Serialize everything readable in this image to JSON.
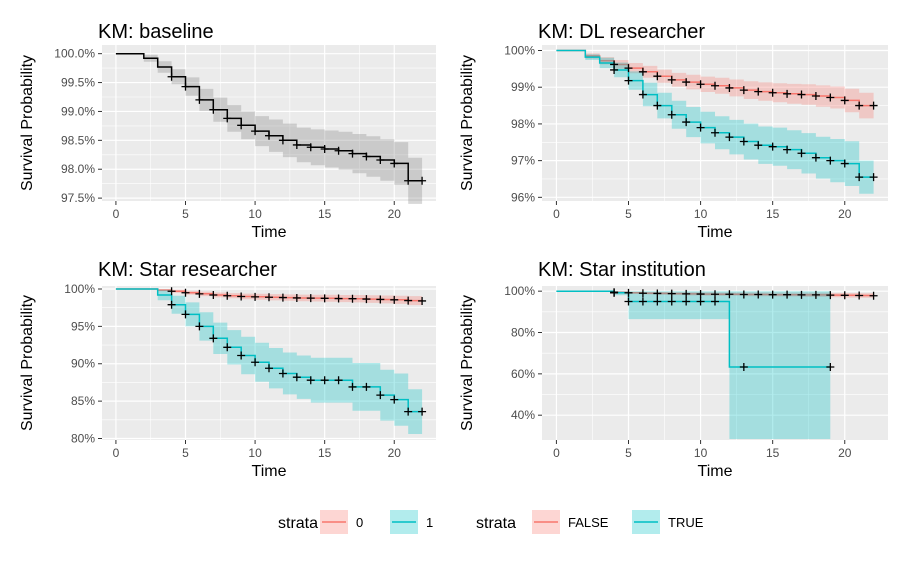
{
  "chart_data": [
    {
      "type": "line",
      "title": "KM: baseline",
      "xlabel": "Time",
      "ylabel": "Survival Probability",
      "xlim": [
        -1,
        23
      ],
      "ylim": [
        97.45,
        100.15
      ],
      "xticks": [
        0,
        5,
        10,
        15,
        20
      ],
      "yticks": [
        97.5,
        98.0,
        98.5,
        99.0,
        99.5,
        100.0
      ],
      "yticklabels": [
        "97.5%",
        "98.0%",
        "98.5%",
        "99.0%",
        "99.5%",
        "100.0%"
      ],
      "series": [
        {
          "name": "",
          "color": "#000000",
          "band_color": "#7f7f7f",
          "x": [
            0,
            2,
            3,
            4,
            5,
            6,
            7,
            8,
            9,
            10,
            11,
            12,
            13,
            14,
            15,
            16,
            17,
            18,
            19,
            20,
            21,
            22
          ],
          "y": [
            100.0,
            99.92,
            99.77,
            99.6,
            99.43,
            99.2,
            99.03,
            98.88,
            98.76,
            98.66,
            98.58,
            98.5,
            98.42,
            98.38,
            98.35,
            98.32,
            98.27,
            98.22,
            98.16,
            98.1,
            97.8,
            97.8
          ],
          "lower": [
            100.0,
            99.86,
            99.67,
            99.47,
            99.27,
            99.01,
            98.82,
            98.65,
            98.52,
            98.4,
            98.3,
            98.21,
            98.12,
            98.07,
            98.03,
            97.99,
            97.93,
            97.87,
            97.8,
            97.73,
            97.4,
            97.4
          ],
          "upper": [
            100.0,
            99.98,
            99.87,
            99.73,
            99.59,
            99.39,
            99.24,
            99.11,
            99.0,
            98.92,
            98.86,
            98.79,
            98.72,
            98.69,
            98.67,
            98.65,
            98.61,
            98.57,
            98.52,
            98.47,
            98.2,
            98.2
          ],
          "censor_x": [
            4,
            5,
            6,
            7,
            8,
            9,
            10,
            11,
            12,
            13,
            14,
            15,
            16,
            17,
            18,
            19,
            20,
            21,
            22
          ],
          "censor_y": [
            99.6,
            99.43,
            99.2,
            99.03,
            98.88,
            98.76,
            98.66,
            98.58,
            98.5,
            98.42,
            98.38,
            98.35,
            98.32,
            98.27,
            98.22,
            98.16,
            98.1,
            97.8,
            97.8
          ]
        }
      ]
    },
    {
      "type": "line",
      "title": "KM: DL researcher",
      "xlabel": "Time",
      "ylabel": "Survival Probability",
      "xlim": [
        -1,
        23
      ],
      "ylim": [
        95.9,
        100.15
      ],
      "xticks": [
        0,
        5,
        10,
        15,
        20
      ],
      "yticks": [
        96,
        97,
        98,
        99,
        100
      ],
      "yticklabels": [
        "96%",
        "97%",
        "98%",
        "99%",
        "100%"
      ],
      "series": [
        {
          "name": "FALSE",
          "color": "#f8766d",
          "band_color": "#f8766d",
          "x": [
            0,
            2,
            3,
            4,
            5,
            6,
            7,
            8,
            9,
            10,
            11,
            12,
            13,
            14,
            15,
            16,
            17,
            18,
            19,
            20,
            21,
            22
          ],
          "y": [
            100.0,
            99.85,
            99.72,
            99.62,
            99.52,
            99.42,
            99.3,
            99.2,
            99.14,
            99.08,
            99.04,
            98.98,
            98.92,
            98.88,
            98.85,
            98.82,
            98.8,
            98.76,
            98.72,
            98.64,
            98.5,
            98.5
          ],
          "lower": [
            100.0,
            99.78,
            99.62,
            99.5,
            99.38,
            99.26,
            99.12,
            99.01,
            98.94,
            98.87,
            98.82,
            98.75,
            98.68,
            98.63,
            98.59,
            98.55,
            98.52,
            98.47,
            98.42,
            98.32,
            98.15,
            98.15
          ],
          "upper": [
            100.0,
            99.92,
            99.82,
            99.74,
            99.66,
            99.58,
            99.48,
            99.39,
            99.34,
            99.29,
            99.26,
            99.21,
            99.16,
            99.13,
            99.11,
            99.09,
            99.08,
            99.05,
            99.02,
            98.96,
            98.85,
            98.85
          ],
          "censor_x": [
            4,
            5,
            6,
            7,
            8,
            9,
            10,
            11,
            12,
            13,
            14,
            15,
            16,
            17,
            18,
            19,
            20,
            21,
            22
          ],
          "censor_y": [
            99.62,
            99.52,
            99.42,
            99.3,
            99.2,
            99.14,
            99.08,
            99.04,
            98.98,
            98.92,
            98.88,
            98.85,
            98.82,
            98.8,
            98.76,
            98.72,
            98.64,
            98.5,
            98.5
          ]
        },
        {
          "name": "TRUE",
          "color": "#00bfc4",
          "band_color": "#00bfc4",
          "x": [
            0,
            2,
            3,
            4,
            5,
            6,
            7,
            8,
            9,
            10,
            11,
            12,
            13,
            14,
            15,
            16,
            17,
            18,
            19,
            20,
            21,
            22
          ],
          "y": [
            100.0,
            99.82,
            99.66,
            99.47,
            99.18,
            98.8,
            98.5,
            98.25,
            98.05,
            97.9,
            97.76,
            97.64,
            97.52,
            97.42,
            97.38,
            97.3,
            97.2,
            97.08,
            97.0,
            96.92,
            96.55,
            96.55
          ],
          "lower": [
            100.0,
            99.74,
            99.52,
            99.27,
            98.93,
            98.48,
            98.15,
            97.87,
            97.64,
            97.47,
            97.31,
            97.17,
            97.03,
            96.91,
            96.86,
            96.77,
            96.65,
            96.51,
            96.41,
            96.31,
            96.1,
            96.1
          ],
          "upper": [
            100.0,
            99.9,
            99.8,
            99.67,
            99.43,
            99.12,
            98.85,
            98.63,
            98.46,
            98.33,
            98.21,
            98.11,
            98.01,
            97.93,
            97.9,
            97.83,
            97.75,
            97.65,
            97.59,
            97.53,
            97.0,
            97.0
          ],
          "censor_x": [
            4,
            5,
            6,
            7,
            8,
            9,
            10,
            11,
            12,
            13,
            14,
            15,
            16,
            17,
            18,
            19,
            20,
            21,
            22
          ],
          "censor_y": [
            99.47,
            99.18,
            98.8,
            98.5,
            98.25,
            98.05,
            97.9,
            97.76,
            97.64,
            97.52,
            97.42,
            97.38,
            97.3,
            97.2,
            97.08,
            97.0,
            96.92,
            96.55,
            96.55
          ]
        }
      ]
    },
    {
      "type": "line",
      "title": "KM: Star researcher",
      "xlabel": "Time",
      "ylabel": "Survival Probability",
      "xlim": [
        -1,
        23
      ],
      "ylim": [
        79.8,
        100.4
      ],
      "xticks": [
        0,
        5,
        10,
        15,
        20
      ],
      "yticks": [
        80,
        85,
        90,
        95,
        100
      ],
      "yticklabels": [
        "80%",
        "85%",
        "90%",
        "95%",
        "100%"
      ],
      "series": [
        {
          "name": "0",
          "color": "#f8766d",
          "band_color": "#f8766d",
          "x": [
            0,
            3,
            4,
            5,
            6,
            7,
            8,
            9,
            10,
            11,
            12,
            13,
            14,
            15,
            16,
            17,
            18,
            19,
            20,
            21,
            22
          ],
          "y": [
            100.0,
            99.85,
            99.7,
            99.5,
            99.35,
            99.2,
            99.1,
            99.0,
            98.95,
            98.9,
            98.85,
            98.8,
            98.78,
            98.75,
            98.72,
            98.7,
            98.65,
            98.6,
            98.55,
            98.45,
            98.4
          ],
          "lower": [
            100.0,
            99.7,
            99.5,
            99.25,
            99.05,
            98.87,
            98.75,
            98.62,
            98.55,
            98.48,
            98.42,
            98.35,
            98.32,
            98.28,
            98.24,
            98.21,
            98.14,
            98.07,
            98.0,
            97.85,
            97.8
          ],
          "upper": [
            100.0,
            100.0,
            99.9,
            99.75,
            99.65,
            99.53,
            99.45,
            99.38,
            99.35,
            99.32,
            99.28,
            99.25,
            99.24,
            99.22,
            99.2,
            99.19,
            99.16,
            99.13,
            99.1,
            99.05,
            99.0
          ],
          "censor_x": [
            4,
            5,
            6,
            7,
            8,
            9,
            10,
            11,
            12,
            13,
            14,
            15,
            16,
            17,
            18,
            19,
            20,
            21,
            22
          ],
          "censor_y": [
            99.7,
            99.5,
            99.35,
            99.2,
            99.1,
            99.0,
            98.95,
            98.9,
            98.85,
            98.8,
            98.78,
            98.75,
            98.72,
            98.7,
            98.65,
            98.6,
            98.55,
            98.45,
            98.4
          ]
        },
        {
          "name": "1",
          "color": "#00bfc4",
          "band_color": "#00bfc4",
          "x": [
            0,
            3,
            4,
            5,
            6,
            7,
            8,
            9,
            10,
            11,
            12,
            13,
            14,
            15,
            16,
            17,
            18,
            19,
            20,
            21,
            22
          ],
          "y": [
            100.0,
            99.2,
            97.9,
            96.6,
            95.0,
            93.4,
            92.2,
            91.1,
            90.2,
            89.4,
            88.7,
            88.2,
            87.8,
            87.8,
            87.8,
            86.9,
            86.9,
            85.8,
            85.2,
            83.6,
            83.6
          ],
          "lower": [
            100.0,
            98.5,
            96.7,
            95.0,
            93.1,
            91.3,
            89.9,
            88.6,
            87.6,
            86.7,
            85.9,
            85.3,
            84.8,
            84.8,
            84.8,
            83.7,
            83.7,
            82.4,
            81.7,
            80.6,
            80.6
          ],
          "upper": [
            100.0,
            99.9,
            99.1,
            98.2,
            96.9,
            95.5,
            94.5,
            93.6,
            92.8,
            92.1,
            91.5,
            91.1,
            90.8,
            90.8,
            90.8,
            90.1,
            90.1,
            89.2,
            88.7,
            86.6,
            86.6
          ],
          "censor_x": [
            4,
            5,
            6,
            7,
            8,
            9,
            10,
            11,
            12,
            13,
            14,
            15,
            16,
            17,
            18,
            19,
            20,
            21,
            22
          ],
          "censor_y": [
            97.9,
            96.6,
            95.0,
            93.4,
            92.2,
            91.1,
            90.2,
            89.4,
            88.7,
            88.2,
            87.8,
            87.8,
            87.8,
            86.9,
            86.9,
            85.8,
            85.2,
            83.6,
            83.6
          ]
        }
      ]
    },
    {
      "type": "line",
      "title": "KM: Star institution",
      "xlabel": "Time",
      "ylabel": "Survival Probability",
      "xlim": [
        -1,
        23
      ],
      "ylim": [
        28,
        102.5
      ],
      "xticks": [
        0,
        5,
        10,
        15,
        20
      ],
      "yticks": [
        40,
        60,
        80,
        100
      ],
      "yticklabels": [
        "40%",
        "60%",
        "80%",
        "100%"
      ],
      "series": [
        {
          "name": "FALSE",
          "color": "#f8766d",
          "band_color": "#f8766d",
          "x": [
            0,
            4,
            5,
            6,
            7,
            8,
            9,
            10,
            11,
            12,
            13,
            14,
            15,
            16,
            17,
            18,
            19,
            20,
            21,
            22
          ],
          "y": [
            100.0,
            99.5,
            99.2,
            99.0,
            98.9,
            98.8,
            98.7,
            98.6,
            98.5,
            98.5,
            98.4,
            98.4,
            98.3,
            98.3,
            98.2,
            98.2,
            98.1,
            98.0,
            97.9,
            97.8
          ],
          "lower": [
            100.0,
            99.1,
            98.7,
            98.4,
            98.2,
            98.1,
            97.9,
            97.8,
            97.7,
            97.7,
            97.5,
            97.5,
            97.4,
            97.4,
            97.2,
            97.2,
            97.1,
            96.9,
            96.8,
            96.6
          ],
          "upper": [
            100.0,
            99.9,
            99.7,
            99.6,
            99.6,
            99.5,
            99.5,
            99.4,
            99.3,
            99.3,
            99.3,
            99.3,
            99.2,
            99.2,
            99.2,
            99.2,
            99.1,
            99.1,
            99.0,
            99.0
          ],
          "censor_x": [
            4,
            5,
            6,
            7,
            8,
            9,
            10,
            11,
            12,
            13,
            14,
            15,
            16,
            17,
            18,
            19,
            20,
            21,
            22
          ],
          "censor_y": [
            99.5,
            99.2,
            99.0,
            98.9,
            98.8,
            98.7,
            98.6,
            98.5,
            98.5,
            98.4,
            98.4,
            98.3,
            98.3,
            98.2,
            98.2,
            98.1,
            98.0,
            97.9,
            97.8
          ]
        },
        {
          "name": "TRUE",
          "color": "#00bfc4",
          "band_color": "#00bfc4",
          "x": [
            0,
            4,
            5,
            12,
            13,
            19
          ],
          "y": [
            100.0,
            99.2,
            95.0,
            63.3,
            63.3,
            63.3
          ],
          "lower": [
            100.0,
            98.0,
            86.5,
            28.5,
            28.5,
            28.5
          ],
          "upper": [
            100.0,
            100.0,
            100.0,
            100.0,
            100.0,
            100.0
          ],
          "censor_x": [
            4,
            5,
            6,
            7,
            8,
            9,
            10,
            11,
            13,
            19
          ],
          "censor_y": [
            99.2,
            95.0,
            95.0,
            95.0,
            95.0,
            95.0,
            95.0,
            95.0,
            63.3,
            63.3
          ]
        }
      ]
    }
  ],
  "legends": [
    {
      "title": "strata",
      "items": [
        {
          "label": "0",
          "color": "#f8766d"
        },
        {
          "label": "1",
          "color": "#00bfc4"
        }
      ]
    },
    {
      "title": "strata",
      "items": [
        {
          "label": "FALSE",
          "color": "#f8766d"
        },
        {
          "label": "TRUE",
          "color": "#00bfc4"
        }
      ]
    }
  ]
}
